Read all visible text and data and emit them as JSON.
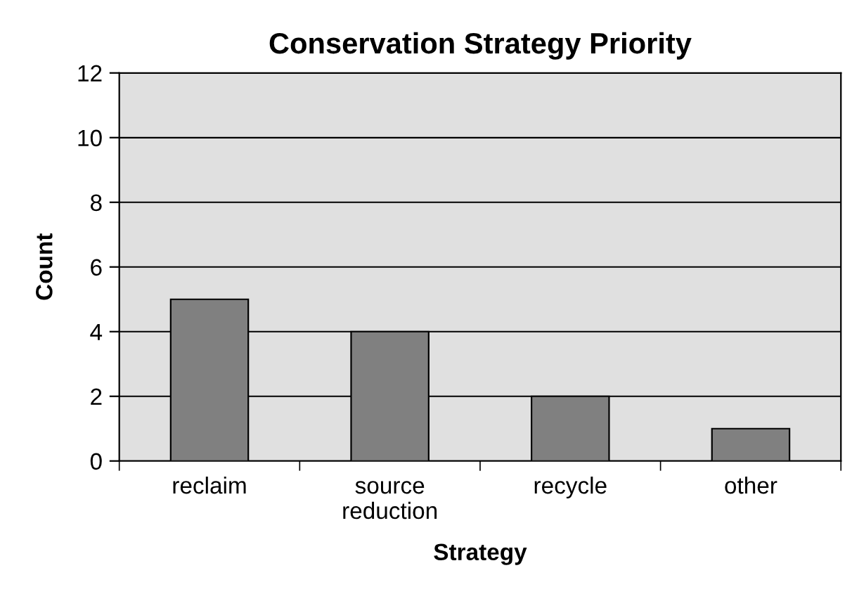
{
  "chart_data": {
    "type": "bar",
    "title": "Conservation Strategy Priority",
    "xlabel": "Strategy",
    "ylabel": "Count",
    "categories": [
      "reclaim",
      "source\nreduction",
      "recycle",
      "other"
    ],
    "values": [
      5,
      4,
      2,
      1
    ],
    "color": "#808080",
    "ylim": [
      0,
      12
    ],
    "yticks": [
      0,
      2,
      4,
      6,
      8,
      10,
      12
    ],
    "grid": "y"
  }
}
